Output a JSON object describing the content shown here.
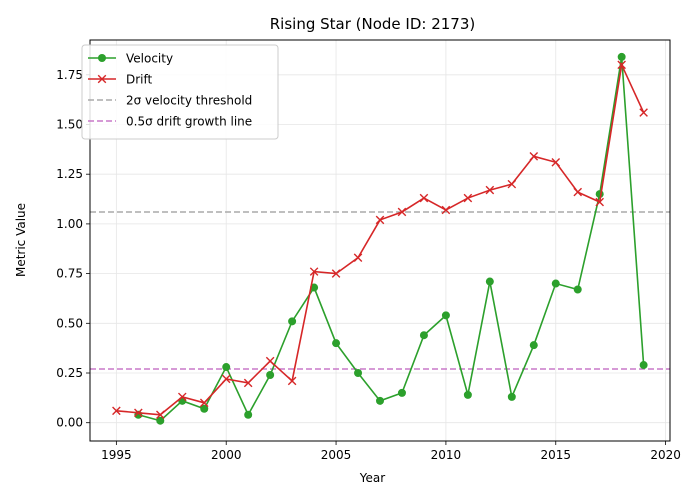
{
  "chart_data": {
    "type": "line",
    "title": "Rising Star (Node ID: 2173)",
    "xlabel": "Year",
    "ylabel": "Metric Value",
    "xlim": [
      1993.8,
      2020.2
    ],
    "ylim": [
      -0.092,
      1.925
    ],
    "x_ticks": [
      1995,
      2000,
      2005,
      2010,
      2015,
      2020
    ],
    "x_tick_labels": [
      "1995",
      "2000",
      "2005",
      "2010",
      "2015",
      "2020"
    ],
    "y_ticks": [
      0.0,
      0.25,
      0.5,
      0.75,
      1.0,
      1.25,
      1.5,
      1.75
    ],
    "y_tick_labels": [
      "0.00",
      "0.25",
      "0.50",
      "0.75",
      "1.00",
      "1.25",
      "1.50",
      "1.75"
    ],
    "grid": true,
    "legend_position": "top-left",
    "series": [
      {
        "name": "Velocity",
        "color": "#2ca02c",
        "marker": "circle",
        "x": [
          1996,
          1997,
          1998,
          1999,
          2000,
          2001,
          2002,
          2003,
          2004,
          2005,
          2006,
          2007,
          2008,
          2009,
          2010,
          2011,
          2012,
          2013,
          2014,
          2015,
          2016,
          2017,
          2018,
          2019
        ],
        "values": [
          0.04,
          0.01,
          0.11,
          0.07,
          0.28,
          0.04,
          0.24,
          0.51,
          0.68,
          0.4,
          0.25,
          0.11,
          0.15,
          0.44,
          0.54,
          0.14,
          0.71,
          0.13,
          0.39,
          0.7,
          0.67,
          1.15,
          1.84,
          0.29
        ]
      },
      {
        "name": "Drift",
        "color": "#d62728",
        "marker": "x",
        "x": [
          1995,
          1996,
          1997,
          1998,
          1999,
          2000,
          2001,
          2002,
          2003,
          2004,
          2005,
          2006,
          2007,
          2008,
          2009,
          2010,
          2011,
          2012,
          2013,
          2014,
          2015,
          2016,
          2017,
          2018,
          2019
        ],
        "values": [
          0.06,
          0.05,
          0.04,
          0.13,
          0.1,
          0.22,
          0.2,
          0.31,
          0.21,
          0.76,
          0.75,
          0.83,
          1.02,
          1.06,
          1.13,
          1.07,
          1.13,
          1.17,
          1.2,
          1.34,
          1.31,
          1.16,
          1.11,
          1.8,
          1.56
        ]
      }
    ],
    "reference_lines": [
      {
        "name": "2σ velocity threshold",
        "y": 1.06,
        "color": "#aaaaaa"
      },
      {
        "name": "0.5σ drift growth line",
        "y": 0.27,
        "color": "#c878c8"
      }
    ]
  }
}
